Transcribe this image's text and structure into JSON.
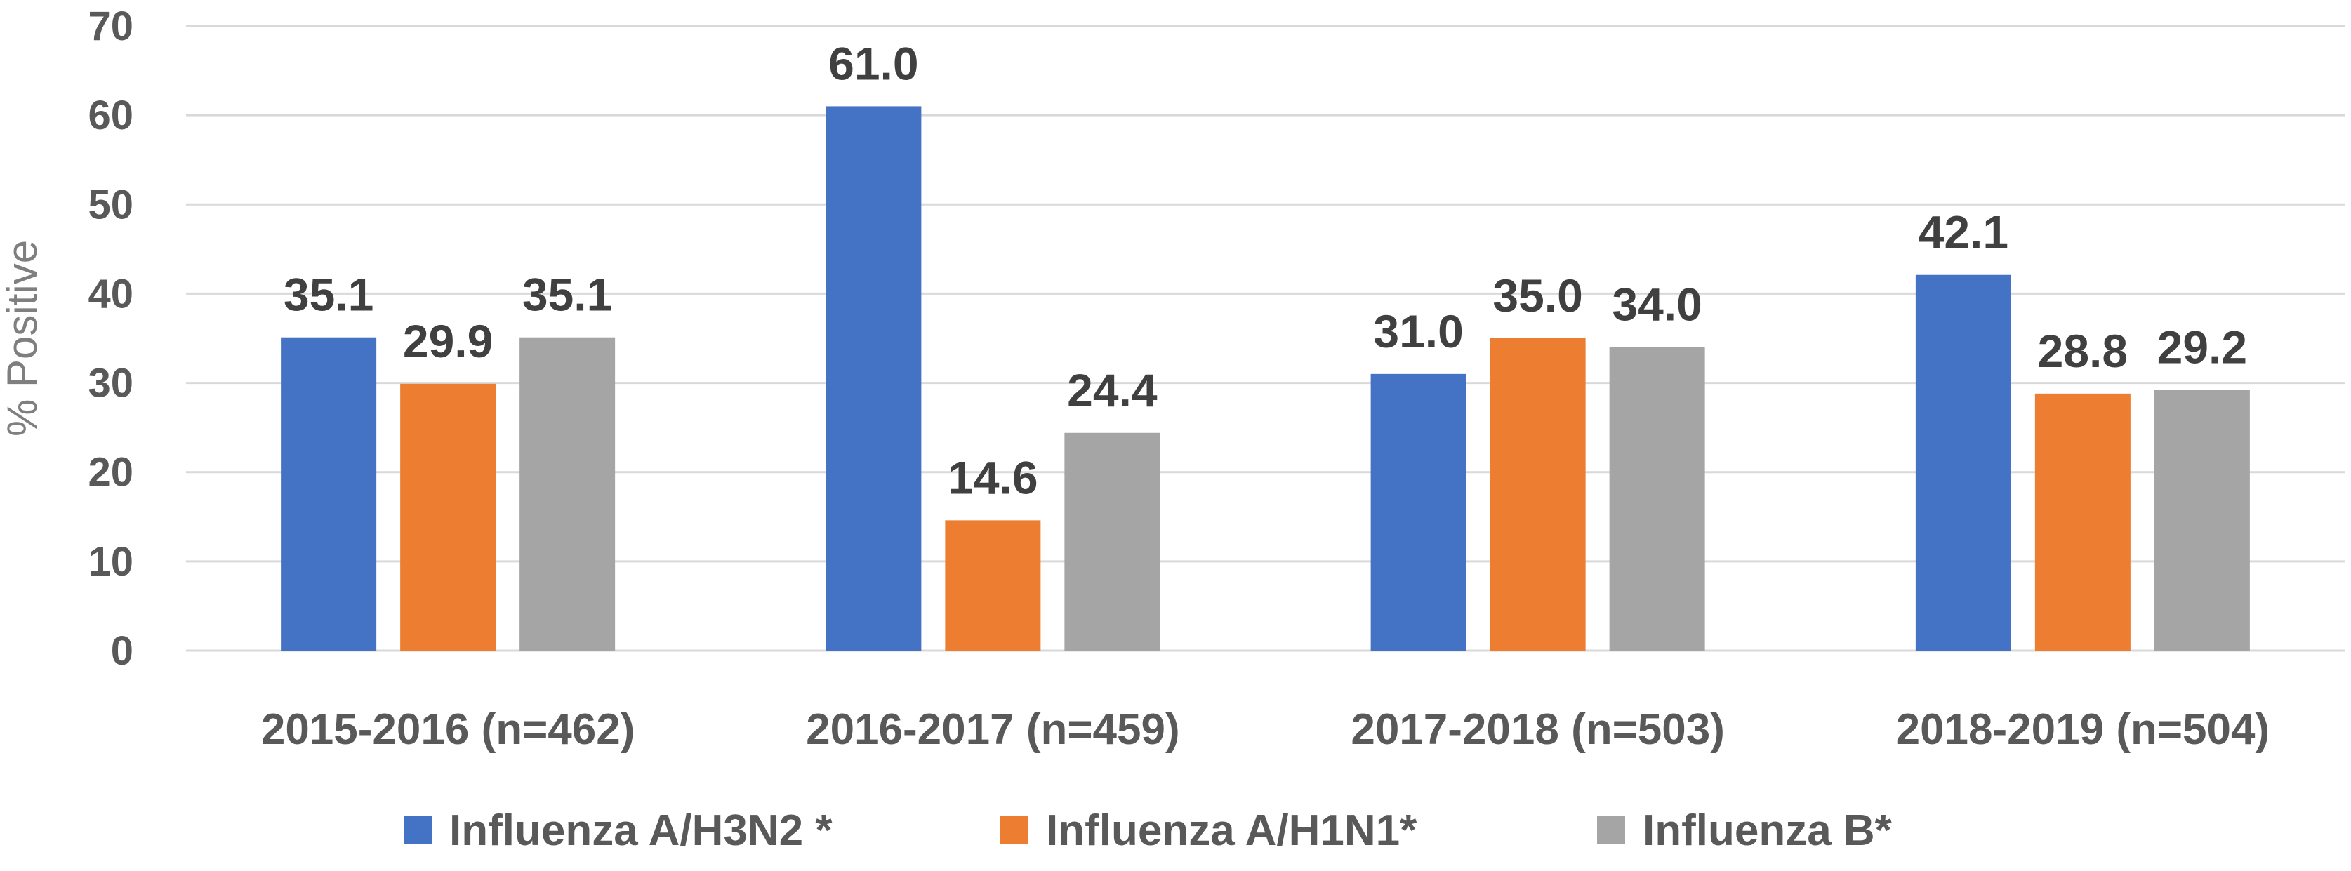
{
  "chart_data": {
    "type": "bar",
    "title": "",
    "xlabel": "",
    "ylabel": "% Positive",
    "ylim": [
      0,
      70
    ],
    "yticks": [
      0,
      10,
      20,
      30,
      40,
      50,
      60,
      70
    ],
    "grid": true,
    "legend_position": "bottom",
    "categories": [
      "2015-2016 (n=462)",
      "2016-2017 (n=459)",
      "2017-2018 (n=503)",
      "2018-2019 (n=504)"
    ],
    "series": [
      {
        "name": "Influenza A/H3N2 *",
        "color": "#4472c4",
        "values": [
          35.1,
          61.0,
          31.0,
          42.1
        ],
        "labels": [
          "35.1",
          "61.0",
          "31.0",
          "42.1"
        ]
      },
      {
        "name": "Influenza A/H1N1*",
        "color": "#ed7d31",
        "values": [
          29.9,
          14.6,
          35.0,
          28.8
        ],
        "labels": [
          "29.9",
          "14.6",
          "35.0",
          "28.8"
        ]
      },
      {
        "name": "Influenza B*",
        "color": "#a5a5a5",
        "values": [
          35.1,
          24.4,
          34.0,
          29.2
        ],
        "labels": [
          "35.1",
          "24.4",
          "34.0",
          "29.2"
        ]
      }
    ]
  }
}
